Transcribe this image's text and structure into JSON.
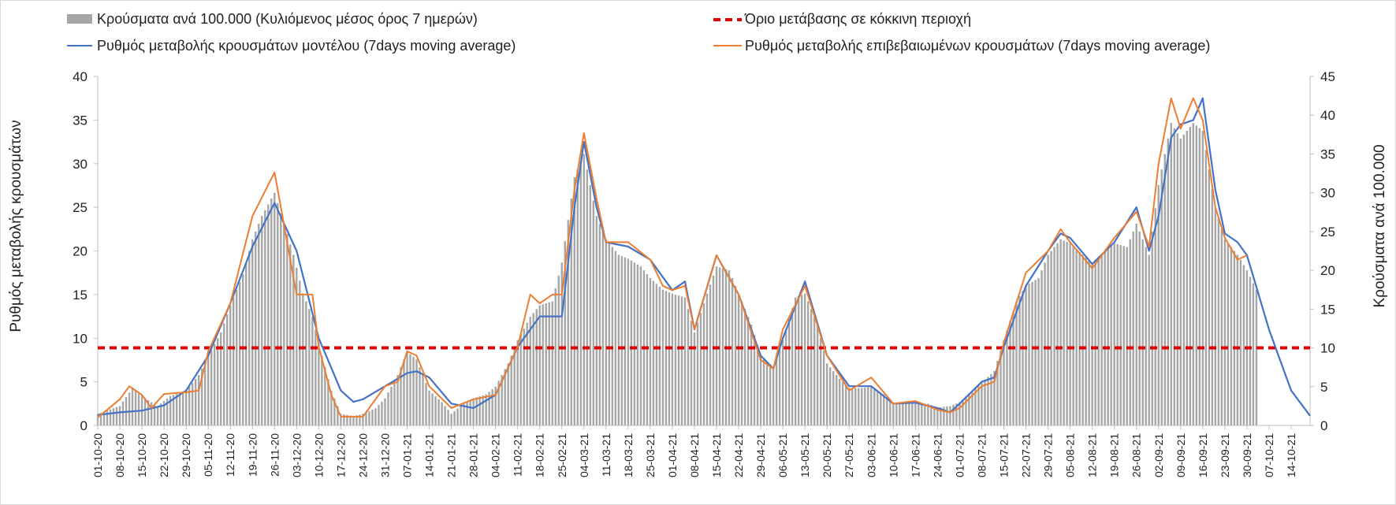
{
  "legend": {
    "bars": "Κρούσματα ανά 100.000 (Κυλιόμενος μέσος όρος 7 ημερών)",
    "threshold": "Όριο μετάβασης σε κόκκινη περιοχή",
    "model": "Ρυθμός μεταβολής κρουσμάτων μοντέλου (7days moving average)",
    "confirmed": "Ρυθμός μεταβολής επιβεβαιωμένων κρουσμάτων (7days moving average)"
  },
  "colors": {
    "bars": "#a6a6a6",
    "threshold": "#e00000",
    "model": "#4472c4",
    "confirmed": "#ed7d31"
  },
  "chart_data": {
    "type": "bar+line",
    "title": "",
    "ylabel_left": "Ρυθμός μεταβολής κρουσμάτων",
    "ylabel_right": "Κρούσματα ανά 100.000",
    "ylim_left": [
      0,
      40
    ],
    "ylim_right": [
      0,
      45
    ],
    "yticks_left": [
      "0",
      "5",
      "10",
      "15",
      "20",
      "25",
      "30",
      "35",
      "40"
    ],
    "yticks_right": [
      "0",
      "5",
      "10",
      "15",
      "20",
      "25",
      "30",
      "35",
      "40",
      "45"
    ],
    "x_start": "2020-10-01",
    "x_end": "2021-10-20",
    "x_ticks": [
      "01-10-20",
      "08-10-20",
      "15-10-20",
      "22-10-20",
      "29-10-20",
      "05-11-20",
      "12-11-20",
      "19-11-20",
      "26-11-20",
      "03-12-20",
      "10-12-20",
      "17-12-20",
      "24-12-20",
      "31-12-20",
      "07-01-21",
      "14-01-21",
      "21-01-21",
      "28-01-21",
      "04-02-21",
      "11-02-21",
      "18-02-21",
      "25-02-21",
      "04-03-21",
      "11-03-21",
      "18-03-21",
      "25-03-21",
      "01-04-21",
      "08-04-21",
      "15-04-21",
      "22-04-21",
      "29-04-21",
      "06-05-21",
      "13-05-21",
      "20-05-21",
      "27-05-21",
      "03-06-21",
      "10-06-21",
      "17-06-21",
      "24-06-21",
      "01-07-21",
      "08-07-21",
      "15-07-21",
      "22-07-21",
      "29-07-21",
      "05-08-21",
      "12-08-21",
      "19-08-21",
      "26-08-21",
      "02-09-21",
      "09-09-21",
      "16-09-21",
      "23-09-21",
      "30-09-21",
      "07-10-21",
      "14-10-21"
    ],
    "threshold": {
      "name": "Όριο μετάβασης σε κόκκινη περιοχή",
      "value_right_axis": 10
    },
    "series": [
      {
        "name": "Κρούσματα ανά 100.000 (Κυλιόμενος μέσος όρος 7 ημερών)",
        "type": "bar",
        "axis": "right",
        "points": [
          [
            "2020-10-01",
            1.5
          ],
          [
            "2020-10-08",
            2.5
          ],
          [
            "2020-10-12",
            4.8
          ],
          [
            "2020-10-16",
            3.5
          ],
          [
            "2020-10-20",
            2.5
          ],
          [
            "2020-10-24",
            3.8
          ],
          [
            "2020-10-29",
            4.5
          ],
          [
            "2020-11-02",
            6.5
          ],
          [
            "2020-11-05",
            9
          ],
          [
            "2020-11-09",
            12
          ],
          [
            "2020-11-12",
            15.5
          ],
          [
            "2020-11-16",
            19.5
          ],
          [
            "2020-11-19",
            24
          ],
          [
            "2020-11-22",
            27
          ],
          [
            "2020-11-26",
            30
          ],
          [
            "2020-11-29",
            26
          ],
          [
            "2020-12-02",
            22
          ],
          [
            "2020-12-05",
            17
          ],
          [
            "2020-12-08",
            14
          ],
          [
            "2020-12-11",
            9
          ],
          [
            "2020-12-14",
            4.5
          ],
          [
            "2020-12-17",
            1.5
          ],
          [
            "2020-12-21",
            1.2
          ],
          [
            "2020-12-24",
            1.5
          ],
          [
            "2020-12-28",
            2.2
          ],
          [
            "2020-12-31",
            3.5
          ],
          [
            "2021-01-04",
            6.5
          ],
          [
            "2021-01-07",
            9.5
          ],
          [
            "2021-01-10",
            8.5
          ],
          [
            "2021-01-14",
            4.5
          ],
          [
            "2021-01-18",
            3
          ],
          [
            "2021-01-21",
            1.5
          ],
          [
            "2021-01-24",
            2.5
          ],
          [
            "2021-01-28",
            3.5
          ],
          [
            "2021-02-01",
            4
          ],
          [
            "2021-02-04",
            5
          ],
          [
            "2021-02-08",
            8
          ],
          [
            "2021-02-11",
            11
          ],
          [
            "2021-02-15",
            14
          ],
          [
            "2021-02-18",
            15.5
          ],
          [
            "2021-02-22",
            16
          ],
          [
            "2021-02-25",
            21
          ],
          [
            "2021-03-01",
            32
          ],
          [
            "2021-03-04",
            35
          ],
          [
            "2021-03-08",
            27
          ],
          [
            "2021-03-11",
            24
          ],
          [
            "2021-03-15",
            22
          ],
          [
            "2021-03-18",
            21.5
          ],
          [
            "2021-03-22",
            20.5
          ],
          [
            "2021-03-25",
            19
          ],
          [
            "2021-03-29",
            17.5
          ],
          [
            "2021-04-01",
            17
          ],
          [
            "2021-04-05",
            16.5
          ],
          [
            "2021-04-08",
            12
          ],
          [
            "2021-04-12",
            17
          ],
          [
            "2021-04-15",
            20.5
          ],
          [
            "2021-04-19",
            20
          ],
          [
            "2021-04-22",
            17
          ],
          [
            "2021-04-26",
            13
          ],
          [
            "2021-04-29",
            9
          ],
          [
            "2021-05-03",
            7.5
          ],
          [
            "2021-05-06",
            11
          ],
          [
            "2021-05-10",
            16.5
          ],
          [
            "2021-05-13",
            17
          ],
          [
            "2021-05-17",
            13
          ],
          [
            "2021-05-20",
            8
          ],
          [
            "2021-05-24",
            6
          ],
          [
            "2021-05-27",
            4.8
          ],
          [
            "2021-05-31",
            4.8
          ],
          [
            "2021-06-03",
            5
          ],
          [
            "2021-06-07",
            4
          ],
          [
            "2021-06-10",
            2.8
          ],
          [
            "2021-06-14",
            2.8
          ],
          [
            "2021-06-17",
            2.8
          ],
          [
            "2021-06-21",
            2.8
          ],
          [
            "2021-06-24",
            2.3
          ],
          [
            "2021-06-28",
            2.5
          ],
          [
            "2021-07-01",
            3
          ],
          [
            "2021-07-05",
            4.5
          ],
          [
            "2021-07-08",
            5.5
          ],
          [
            "2021-07-12",
            7
          ],
          [
            "2021-07-15",
            11
          ],
          [
            "2021-07-19",
            16
          ],
          [
            "2021-07-22",
            18
          ],
          [
            "2021-07-26",
            19
          ],
          [
            "2021-07-29",
            22
          ],
          [
            "2021-08-02",
            24
          ],
          [
            "2021-08-05",
            23.5
          ],
          [
            "2021-08-09",
            22
          ],
          [
            "2021-08-12",
            21
          ],
          [
            "2021-08-16",
            22.5
          ],
          [
            "2021-08-19",
            23.5
          ],
          [
            "2021-08-23",
            23
          ],
          [
            "2021-08-26",
            26
          ],
          [
            "2021-08-30",
            22
          ],
          [
            "2021-09-02",
            31
          ],
          [
            "2021-09-06",
            39
          ],
          [
            "2021-09-09",
            37
          ],
          [
            "2021-09-13",
            39
          ],
          [
            "2021-09-16",
            38
          ],
          [
            "2021-09-20",
            28
          ],
          [
            "2021-09-23",
            24
          ],
          [
            "2021-09-27",
            22
          ],
          [
            "2021-09-30",
            20
          ],
          [
            "2021-10-03",
            17.5
          ]
        ]
      },
      {
        "name": "Ρυθμός μεταβολής κρουσμάτων μοντέλου (7days moving average)",
        "type": "line",
        "axis": "left",
        "points": [
          [
            "2020-10-01",
            1.2
          ],
          [
            "2020-10-08",
            1.5
          ],
          [
            "2020-10-15",
            1.7
          ],
          [
            "2020-10-22",
            2.3
          ],
          [
            "2020-10-29",
            4
          ],
          [
            "2020-11-05",
            8
          ],
          [
            "2020-11-12",
            14
          ],
          [
            "2020-11-19",
            20.5
          ],
          [
            "2020-11-26",
            25.5
          ],
          [
            "2020-12-03",
            20
          ],
          [
            "2020-12-10",
            10
          ],
          [
            "2020-12-17",
            4
          ],
          [
            "2020-12-21",
            2.7
          ],
          [
            "2020-12-24",
            3
          ],
          [
            "2020-12-31",
            4.5
          ],
          [
            "2021-01-07",
            6
          ],
          [
            "2021-01-10",
            6.2
          ],
          [
            "2021-01-14",
            5.5
          ],
          [
            "2021-01-21",
            2.5
          ],
          [
            "2021-01-28",
            2
          ],
          [
            "2021-02-04",
            3.5
          ],
          [
            "2021-02-11",
            9
          ],
          [
            "2021-02-18",
            12.5
          ],
          [
            "2021-02-25",
            12.5
          ],
          [
            "2021-03-01",
            25
          ],
          [
            "2021-03-04",
            32.5
          ],
          [
            "2021-03-08",
            25
          ],
          [
            "2021-03-11",
            21
          ],
          [
            "2021-03-18",
            20.5
          ],
          [
            "2021-03-25",
            19
          ],
          [
            "2021-04-01",
            15.5
          ],
          [
            "2021-04-05",
            16.5
          ],
          [
            "2021-04-08",
            11
          ],
          [
            "2021-04-15",
            19.5
          ],
          [
            "2021-04-22",
            15
          ],
          [
            "2021-04-29",
            8
          ],
          [
            "2021-05-03",
            6.5
          ],
          [
            "2021-05-06",
            10
          ],
          [
            "2021-05-13",
            16.5
          ],
          [
            "2021-05-20",
            8
          ],
          [
            "2021-05-27",
            4.5
          ],
          [
            "2021-06-03",
            4.5
          ],
          [
            "2021-06-10",
            2.5
          ],
          [
            "2021-06-17",
            2.6
          ],
          [
            "2021-06-24",
            2
          ],
          [
            "2021-06-28",
            1.5
          ],
          [
            "2021-07-01",
            2.5
          ],
          [
            "2021-07-08",
            5
          ],
          [
            "2021-07-12",
            5.5
          ],
          [
            "2021-07-15",
            9
          ],
          [
            "2021-07-22",
            16
          ],
          [
            "2021-07-29",
            20
          ],
          [
            "2021-08-02",
            22
          ],
          [
            "2021-08-05",
            21.5
          ],
          [
            "2021-08-12",
            18.5
          ],
          [
            "2021-08-19",
            21
          ],
          [
            "2021-08-26",
            25
          ],
          [
            "2021-08-30",
            20
          ],
          [
            "2021-09-02",
            24
          ],
          [
            "2021-09-06",
            33
          ],
          [
            "2021-09-09",
            34.5
          ],
          [
            "2021-09-13",
            35
          ],
          [
            "2021-09-16",
            37.5
          ],
          [
            "2021-09-20",
            27
          ],
          [
            "2021-09-23",
            22
          ],
          [
            "2021-09-27",
            21
          ],
          [
            "2021-09-30",
            19.5
          ],
          [
            "2021-10-07",
            11
          ],
          [
            "2021-10-14",
            4
          ],
          [
            "2021-10-20",
            1.1
          ]
        ]
      },
      {
        "name": "Ρυθμός μεταβολής επιβεβαιωμένων κρουσμάτων (7days moving average)",
        "type": "line",
        "axis": "left",
        "points": [
          [
            "2020-10-01",
            0.9
          ],
          [
            "2020-10-08",
            3
          ],
          [
            "2020-10-11",
            4.5
          ],
          [
            "2020-10-15",
            3.5
          ],
          [
            "2020-10-18",
            2
          ],
          [
            "2020-10-22",
            3.6
          ],
          [
            "2020-10-29",
            3.8
          ],
          [
            "2020-11-02",
            4
          ],
          [
            "2020-11-05",
            8.5
          ],
          [
            "2020-11-12",
            14
          ],
          [
            "2020-11-19",
            24
          ],
          [
            "2020-11-26",
            29
          ],
          [
            "2020-12-03",
            15
          ],
          [
            "2020-12-08",
            15
          ],
          [
            "2020-12-10",
            9
          ],
          [
            "2020-12-14",
            3.5
          ],
          [
            "2020-12-17",
            1
          ],
          [
            "2020-12-24",
            1
          ],
          [
            "2020-12-31",
            4.5
          ],
          [
            "2021-01-04",
            5
          ],
          [
            "2021-01-07",
            8.5
          ],
          [
            "2021-01-10",
            8
          ],
          [
            "2021-01-14",
            4.5
          ],
          [
            "2021-01-21",
            2
          ],
          [
            "2021-01-28",
            3
          ],
          [
            "2021-02-04",
            3.5
          ],
          [
            "2021-02-11",
            9
          ],
          [
            "2021-02-15",
            15
          ],
          [
            "2021-02-18",
            14
          ],
          [
            "2021-02-22",
            15
          ],
          [
            "2021-02-25",
            15
          ],
          [
            "2021-03-01",
            27
          ],
          [
            "2021-03-04",
            33.5
          ],
          [
            "2021-03-08",
            26
          ],
          [
            "2021-03-11",
            21
          ],
          [
            "2021-03-18",
            21
          ],
          [
            "2021-03-25",
            19
          ],
          [
            "2021-03-29",
            16
          ],
          [
            "2021-04-01",
            15.5
          ],
          [
            "2021-04-05",
            16
          ],
          [
            "2021-04-08",
            11
          ],
          [
            "2021-04-15",
            19.5
          ],
          [
            "2021-04-22",
            15
          ],
          [
            "2021-04-29",
            7.5
          ],
          [
            "2021-05-03",
            6.5
          ],
          [
            "2021-05-06",
            11
          ],
          [
            "2021-05-13",
            16
          ],
          [
            "2021-05-20",
            8
          ],
          [
            "2021-05-27",
            4
          ],
          [
            "2021-06-03",
            5.5
          ],
          [
            "2021-06-10",
            2.5
          ],
          [
            "2021-06-17",
            2.8
          ],
          [
            "2021-06-24",
            1.8
          ],
          [
            "2021-06-28",
            1.5
          ],
          [
            "2021-07-01",
            2
          ],
          [
            "2021-07-08",
            4.5
          ],
          [
            "2021-07-12",
            5
          ],
          [
            "2021-07-15",
            9.5
          ],
          [
            "2021-07-22",
            17.5
          ],
          [
            "2021-07-29",
            20
          ],
          [
            "2021-08-02",
            22.5
          ],
          [
            "2021-08-05",
            21
          ],
          [
            "2021-08-12",
            18
          ],
          [
            "2021-08-19",
            21.5
          ],
          [
            "2021-08-26",
            24.5
          ],
          [
            "2021-08-30",
            20.5
          ],
          [
            "2021-09-02",
            30
          ],
          [
            "2021-09-06",
            37.5
          ],
          [
            "2021-09-09",
            34
          ],
          [
            "2021-09-13",
            37.5
          ],
          [
            "2021-09-16",
            35
          ],
          [
            "2021-09-20",
            25
          ],
          [
            "2021-09-23",
            21.5
          ],
          [
            "2021-09-27",
            19
          ],
          [
            "2021-09-30",
            19.5
          ]
        ]
      }
    ],
    "grid": false,
    "legend_position": "top"
  }
}
